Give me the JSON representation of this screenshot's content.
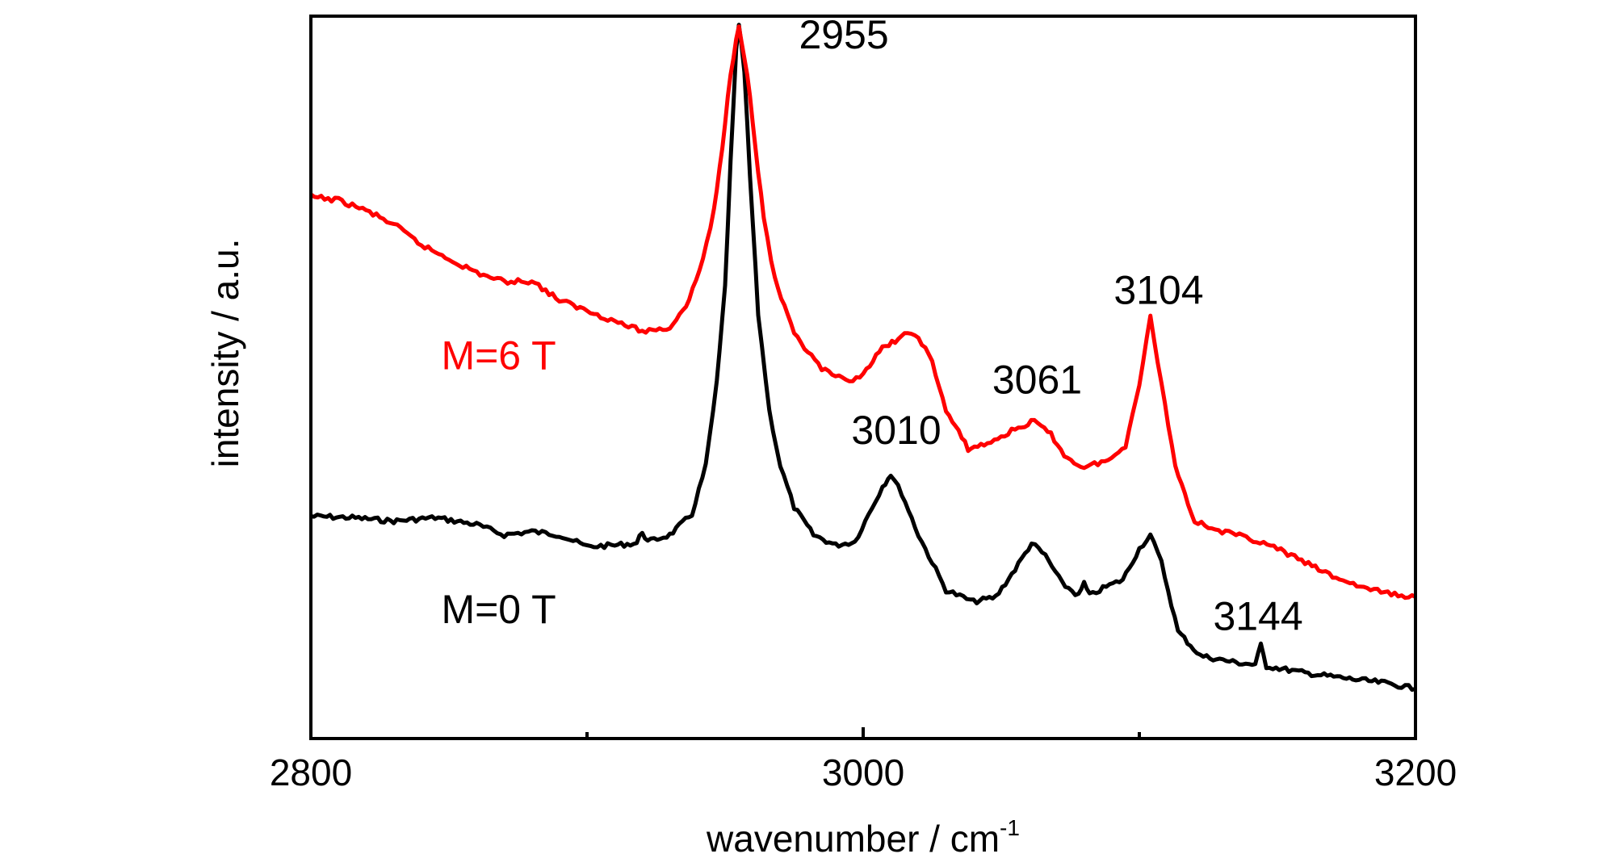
{
  "chart_data": {
    "type": "line",
    "xlabel": "wavenumber / cm",
    "xlabel_sup": "-1",
    "ylabel": "intensity / a.u.",
    "xlim": [
      2800,
      3200
    ],
    "ylim": [
      0,
      1
    ],
    "x_ticks": [
      2800,
      3000,
      3200
    ],
    "x_minor_ticks": [
      2900,
      3100
    ],
    "y_ticks": [],
    "grid": false,
    "colors": {
      "black_series": "#000000",
      "red_series": "#ff0000",
      "axes": "#000000"
    },
    "series": [
      {
        "name": "M=0 T",
        "color": "#000000",
        "points": [
          [
            2800,
            0.287
          ],
          [
            2815,
            0.285
          ],
          [
            2830,
            0.28
          ],
          [
            2845,
            0.285
          ],
          [
            2860,
            0.275
          ],
          [
            2870,
            0.26
          ],
          [
            2880,
            0.265
          ],
          [
            2890,
            0.26
          ],
          [
            2900,
            0.243
          ],
          [
            2910,
            0.245
          ],
          [
            2918,
            0.248
          ],
          [
            2920,
            0.265
          ],
          [
            2922,
            0.25
          ],
          [
            2930,
            0.26
          ],
          [
            2938,
            0.29
          ],
          [
            2943,
            0.36
          ],
          [
            2947,
            0.48
          ],
          [
            2950,
            0.62
          ],
          [
            2952,
            0.8
          ],
          [
            2954,
            0.96
          ],
          [
            2955,
            1.0
          ],
          [
            2957,
            0.93
          ],
          [
            2959,
            0.78
          ],
          [
            2962,
            0.58
          ],
          [
            2966,
            0.44
          ],
          [
            2970,
            0.36
          ],
          [
            2975,
            0.3
          ],
          [
            2982,
            0.26
          ],
          [
            2990,
            0.245
          ],
          [
            2997,
            0.25
          ],
          [
            3002,
            0.29
          ],
          [
            3007,
            0.33
          ],
          [
            3010,
            0.348
          ],
          [
            3014,
            0.32
          ],
          [
            3020,
            0.26
          ],
          [
            3030,
            0.18
          ],
          [
            3040,
            0.163
          ],
          [
            3048,
            0.17
          ],
          [
            3055,
            0.21
          ],
          [
            3061,
            0.248
          ],
          [
            3066,
            0.23
          ],
          [
            3072,
            0.19
          ],
          [
            3078,
            0.172
          ],
          [
            3080,
            0.19
          ],
          [
            3082,
            0.172
          ],
          [
            3088,
            0.185
          ],
          [
            3094,
            0.195
          ],
          [
            3100,
            0.24
          ],
          [
            3104,
            0.26
          ],
          [
            3108,
            0.22
          ],
          [
            3114,
            0.12
          ],
          [
            3122,
            0.085
          ],
          [
            3135,
            0.075
          ],
          [
            3142,
            0.072
          ],
          [
            3144,
            0.1
          ],
          [
            3146,
            0.07
          ],
          [
            3160,
            0.06
          ],
          [
            3175,
            0.052
          ],
          [
            3190,
            0.045
          ],
          [
            3200,
            0.037
          ]
        ]
      },
      {
        "name": "M=6 T",
        "color": "#ff0000",
        "points": [
          [
            2800,
            0.75
          ],
          [
            2810,
            0.745
          ],
          [
            2820,
            0.73
          ],
          [
            2830,
            0.71
          ],
          [
            2840,
            0.68
          ],
          [
            2850,
            0.66
          ],
          [
            2860,
            0.64
          ],
          [
            2870,
            0.627
          ],
          [
            2880,
            0.628
          ],
          [
            2890,
            0.6
          ],
          [
            2900,
            0.585
          ],
          [
            2910,
            0.57
          ],
          [
            2920,
            0.555
          ],
          [
            2930,
            0.56
          ],
          [
            2937,
            0.6
          ],
          [
            2942,
            0.66
          ],
          [
            2946,
            0.73
          ],
          [
            2949,
            0.82
          ],
          [
            2952,
            0.93
          ],
          [
            2955,
            1.0
          ],
          [
            2958,
            0.93
          ],
          [
            2961,
            0.82
          ],
          [
            2964,
            0.72
          ],
          [
            2968,
            0.63
          ],
          [
            2975,
            0.55
          ],
          [
            2985,
            0.5
          ],
          [
            2995,
            0.48
          ],
          [
            3000,
            0.495
          ],
          [
            3007,
            0.53
          ],
          [
            3015,
            0.55
          ],
          [
            3020,
            0.548
          ],
          [
            3025,
            0.51
          ],
          [
            3030,
            0.44
          ],
          [
            3038,
            0.385
          ],
          [
            3045,
            0.392
          ],
          [
            3055,
            0.413
          ],
          [
            3062,
            0.425
          ],
          [
            3068,
            0.405
          ],
          [
            3074,
            0.37
          ],
          [
            3080,
            0.358
          ],
          [
            3090,
            0.37
          ],
          [
            3095,
            0.39
          ],
          [
            3100,
            0.48
          ],
          [
            3104,
            0.575
          ],
          [
            3108,
            0.48
          ],
          [
            3113,
            0.36
          ],
          [
            3120,
            0.28
          ],
          [
            3130,
            0.265
          ],
          [
            3140,
            0.255
          ],
          [
            3150,
            0.24
          ],
          [
            3160,
            0.22
          ],
          [
            3170,
            0.2
          ],
          [
            3180,
            0.185
          ],
          [
            3190,
            0.175
          ],
          [
            3200,
            0.17
          ]
        ]
      }
    ],
    "series_labels": [
      {
        "text": "M=0 T",
        "x": 2868,
        "y": 0.132,
        "color": "#000000"
      },
      {
        "text": "M=6 T",
        "x": 2868,
        "y": 0.5,
        "color": "#ff0000"
      }
    ],
    "annotations": [
      {
        "text": "2955",
        "x": 2993,
        "y": 0.965
      },
      {
        "text": "3010",
        "x": 3012,
        "y": 0.392
      },
      {
        "text": "3061",
        "x": 3063,
        "y": 0.465
      },
      {
        "text": "3104",
        "x": 3107,
        "y": 0.595
      },
      {
        "text": "3144",
        "x": 3143,
        "y": 0.122
      }
    ]
  }
}
